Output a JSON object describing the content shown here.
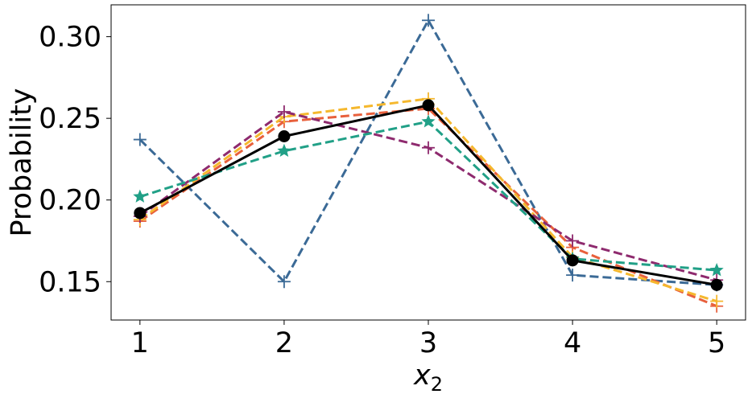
{
  "chart_data": {
    "type": "line",
    "xlabel": "x",
    "xlabel_subscript": "2",
    "ylabel": "Probability",
    "x": [
      1,
      2,
      3,
      4,
      5
    ],
    "xticks": [
      "1",
      "2",
      "3",
      "4",
      "5"
    ],
    "yticks": [
      "0.15",
      "0.20",
      "0.25",
      "0.30"
    ],
    "ytick_values": [
      0.15,
      0.2,
      0.25,
      0.3
    ],
    "xlim": [
      0.8,
      5.2
    ],
    "ylim": [
      0.1265,
      0.3195
    ],
    "grid": false,
    "legend": "none",
    "series": [
      {
        "values": [
          0.237,
          0.15,
          0.31,
          0.154,
          0.148
        ],
        "color": "#3b6a96",
        "marker": "plus",
        "line": "dashed"
      },
      {
        "values": [
          0.187,
          0.248,
          0.256,
          0.171,
          0.135
        ],
        "color": "#e8603c",
        "marker": "plus",
        "line": "dashed"
      },
      {
        "values": [
          0.188,
          0.251,
          0.262,
          0.165,
          0.138
        ],
        "color": "#f5b82e",
        "marker": "plus",
        "line": "dashed"
      },
      {
        "values": [
          0.19,
          0.254,
          0.232,
          0.175,
          0.151
        ],
        "color": "#8e2a6e",
        "marker": "plus",
        "line": "dashed"
      },
      {
        "values": [
          0.202,
          0.23,
          0.248,
          0.164,
          0.157
        ],
        "color": "#21a087",
        "marker": "star",
        "line": "dashed"
      },
      {
        "values": [
          0.192,
          0.239,
          0.258,
          0.163,
          0.148
        ],
        "color": "#000000",
        "marker": "circle",
        "line": "solid"
      }
    ]
  }
}
